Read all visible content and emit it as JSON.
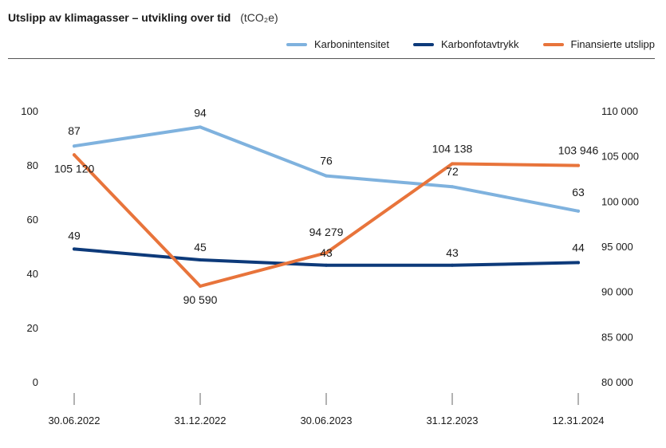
{
  "title": "Utslipp av klimagasser – utvikling over tid",
  "unit": "(tCO₂e)",
  "legend": [
    {
      "label": "Karbonintensitet",
      "color": "#7fb2de"
    },
    {
      "label": "Karbonfotavtrykk",
      "color": "#0d3a7a"
    },
    {
      "label": "Finansierte utslipp",
      "color": "#e8743b"
    }
  ],
  "chart_data": {
    "type": "line",
    "categories": [
      "30.06.2022",
      "31.12.2022",
      "30.06.2023",
      "31.12.2023",
      "12.31.2024"
    ],
    "left_axis": {
      "min": 0,
      "max": 100,
      "ticks": [
        "0",
        "20",
        "40",
        "60",
        "80",
        "100"
      ]
    },
    "right_axis": {
      "min": 80000,
      "max": 110000,
      "ticks": [
        "80 000",
        "85 000",
        "90 000",
        "95 000",
        "100 000",
        "105 000",
        "110 000"
      ]
    },
    "series": [
      {
        "name": "Karbonintensitet",
        "axis": "left",
        "color": "#7fb2de",
        "values": [
          87,
          94,
          76,
          72,
          63
        ],
        "labels": [
          "87",
          "94",
          "76",
          "72",
          "63"
        ]
      },
      {
        "name": "Karbonfotavtrykk",
        "axis": "left",
        "color": "#0d3a7a",
        "values": [
          49,
          45,
          43,
          43,
          44
        ],
        "labels": [
          "49",
          "45",
          "43",
          "43",
          "44"
        ]
      },
      {
        "name": "Finansierte utslipp",
        "axis": "right",
        "color": "#e8743b",
        "values": [
          105120,
          90590,
          94279,
          104138,
          103946
        ],
        "labels": [
          "105 120",
          "90 590",
          "94 279",
          "104 138",
          "103 946"
        ]
      }
    ]
  }
}
